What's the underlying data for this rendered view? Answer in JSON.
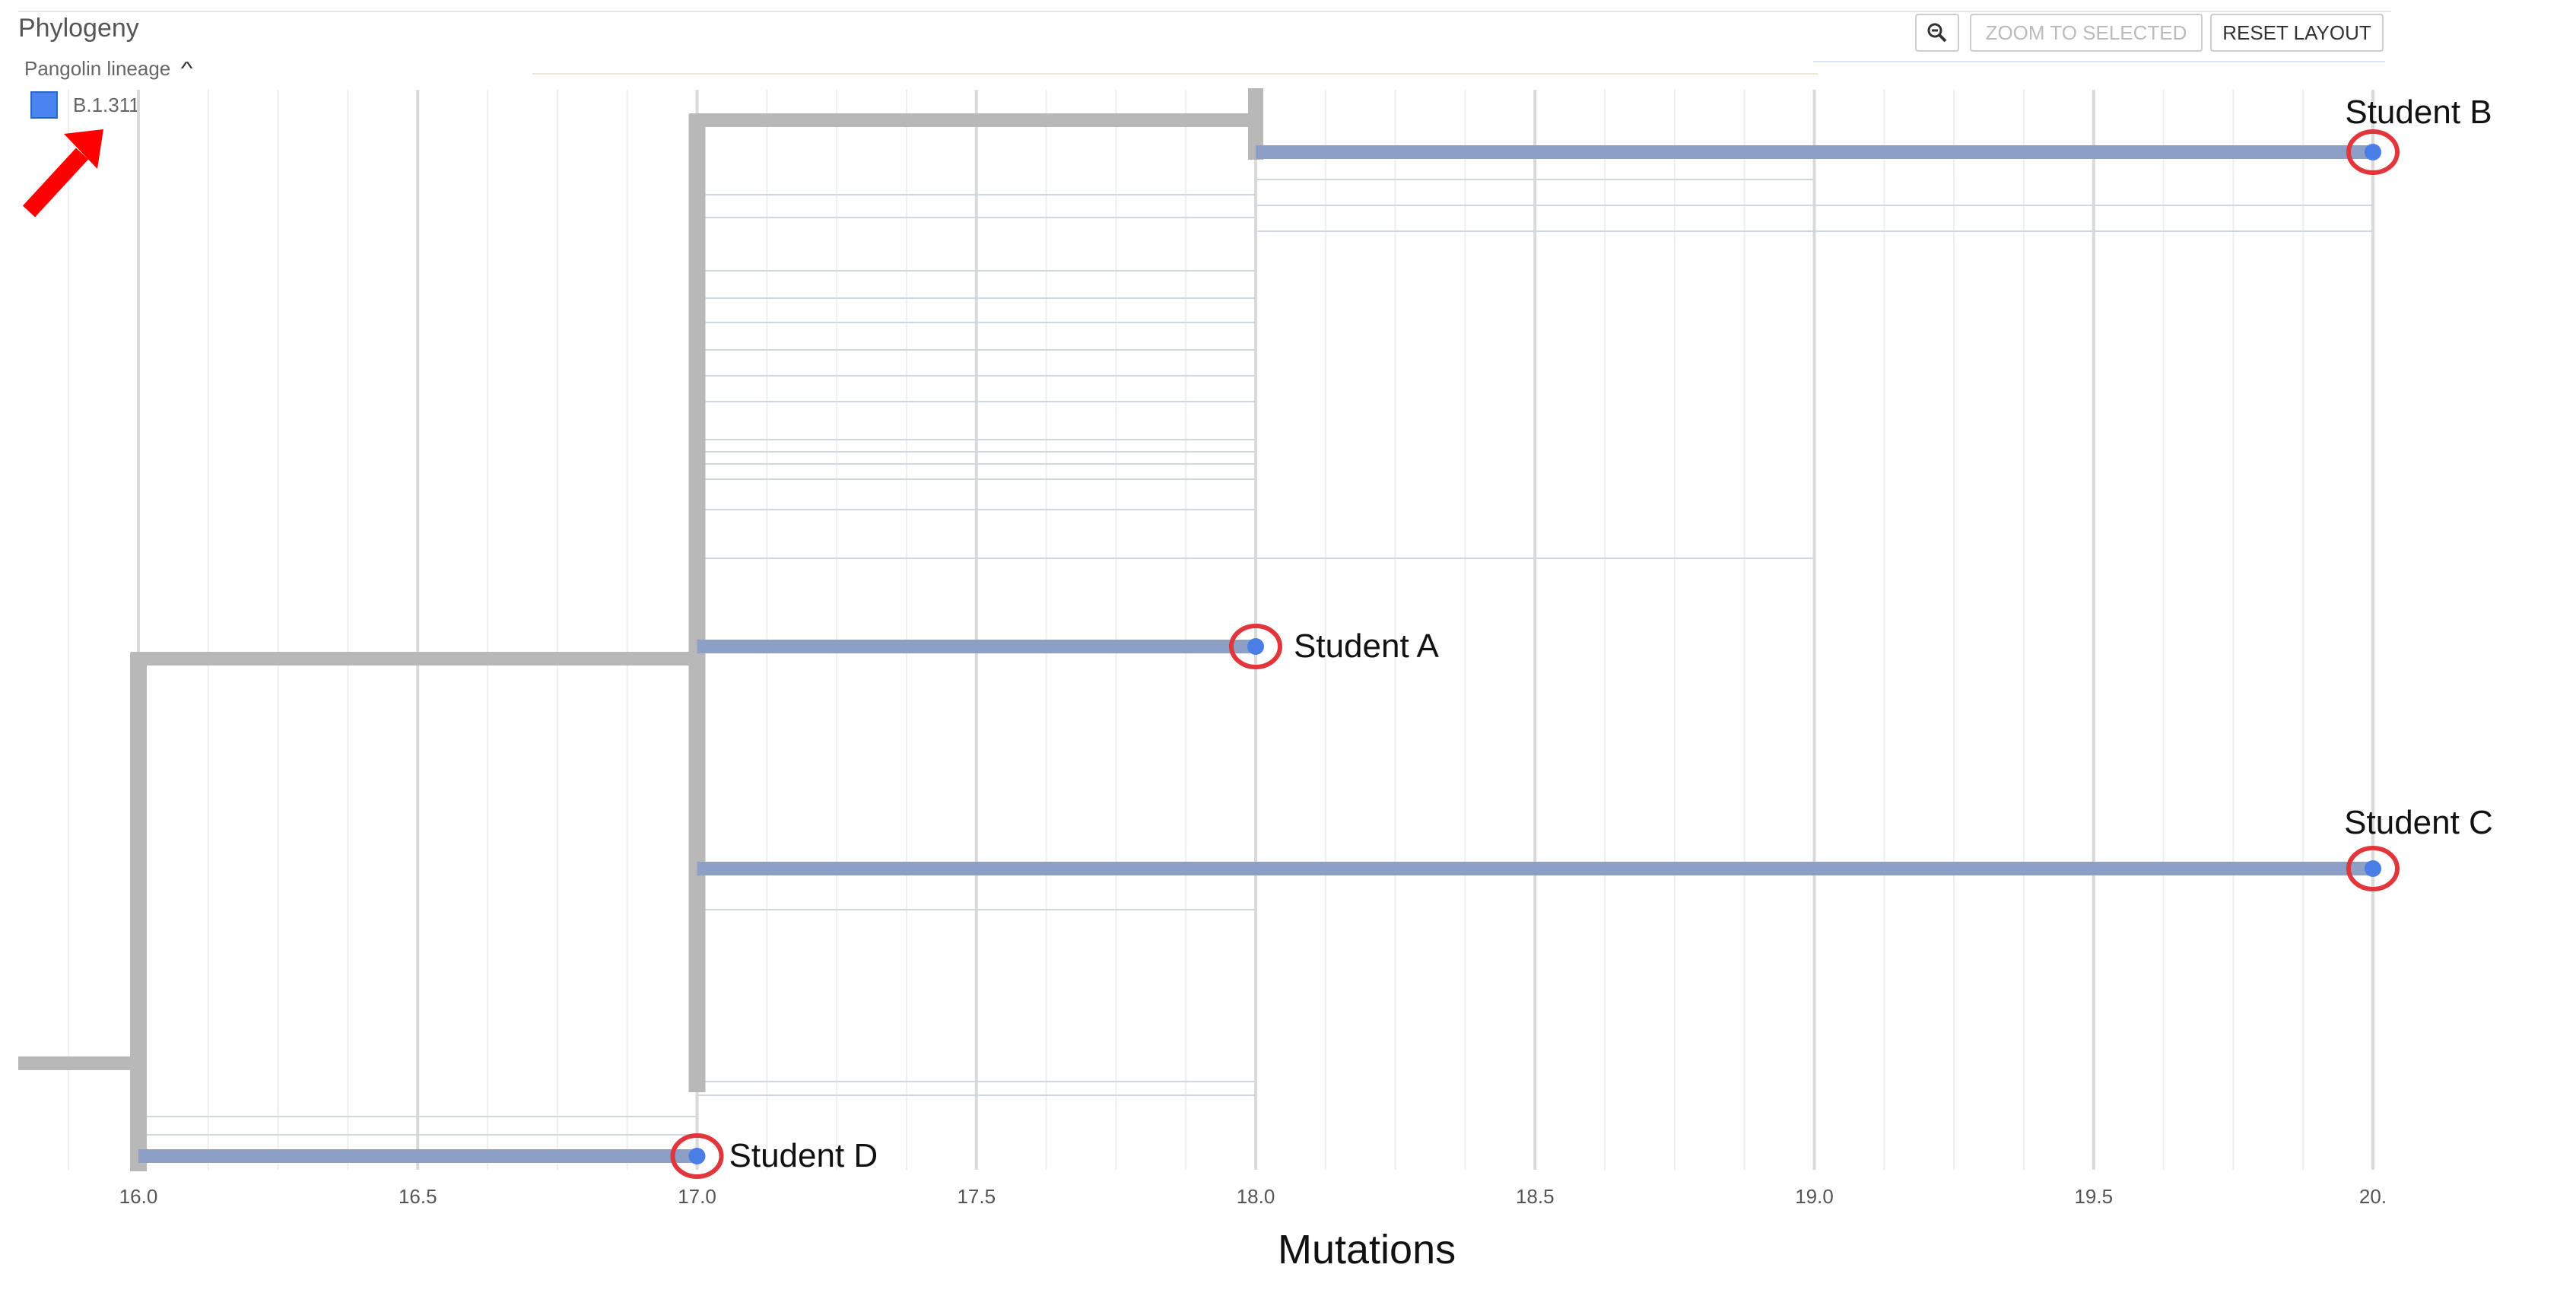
{
  "panel": {
    "title": "Phylogeny",
    "legend_title": "Pangolin lineage",
    "legend_items": [
      {
        "label": "B.1.311",
        "color": "#4a84f0"
      }
    ]
  },
  "toolbar": {
    "zoom_icon": "magnifier-minus-icon",
    "zoom_to_selected_label": "ZOOM TO SELECTED",
    "reset_layout_label": "RESET LAYOUT"
  },
  "annotation": {
    "arrow_color": "#ff0000",
    "circle_color": "#e0363c"
  },
  "chart_data": {
    "type": "tree",
    "xlabel": "Mutations",
    "xlim": [
      15.87,
      20.02
    ],
    "x_ticks": [
      16.0,
      16.5,
      17.0,
      17.5,
      18.0,
      18.5,
      19.0,
      19.5,
      20.0
    ],
    "x_tick_labels": [
      "16.0",
      "16.5",
      "17.0",
      "17.5",
      "18.0",
      "18.5",
      "19.0",
      "19.5",
      "20."
    ],
    "colors": {
      "selected": "#8ba0c4",
      "unselected": "#b8b8b8",
      "tip": "#4a7ee6",
      "thin": "#cfd8e0"
    },
    "tips": [
      {
        "label": "Student A",
        "x": 18.0
      },
      {
        "label": "Student B",
        "x": 20.0
      },
      {
        "label": "Student C",
        "x": 20.0
      },
      {
        "label": "Student D",
        "x": 17.0
      }
    ]
  }
}
